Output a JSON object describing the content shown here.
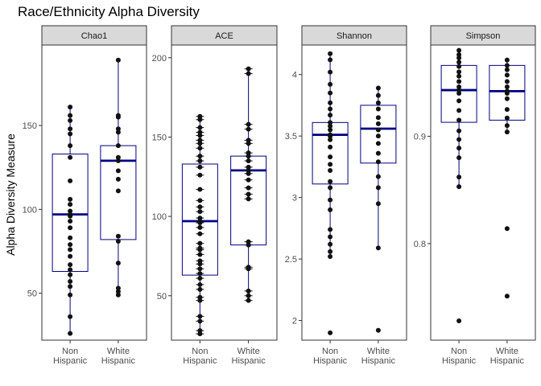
{
  "chart_data": {
    "type": "box",
    "title": "Race/Ethnicity Alpha Diversity",
    "ylabel": "Alpha Diversity Measure",
    "xlabel": "",
    "categories": [
      "Non\nHispanic",
      "White\nHispanic"
    ],
    "colors": {
      "box": "#000080",
      "median": "#000080",
      "points": "#111111",
      "strip_fill": "#d9d9d9",
      "panel_border": "#333333"
    },
    "facets": [
      {
        "name": "Chao1",
        "ylim": [
          22,
          198
        ],
        "yticks": [
          50,
          100,
          150
        ],
        "error_bars": false,
        "groups": [
          {
            "category": "Non\nHispanic",
            "box": {
              "q1": 63,
              "median": 97,
              "q3": 133,
              "whisker_low": 26,
              "whisker_high": 161
            },
            "points": [
              26,
              36,
              49,
              54,
              57,
              61,
              64,
              67,
              72,
              76,
              79,
              83,
              89,
              93,
              96,
              97,
              99,
              103,
              106,
              117,
              131,
              138,
              145,
              148,
              153,
              156,
              161
            ]
          },
          {
            "category": "White\nHispanic",
            "box": {
              "q1": 82,
              "median": 129,
              "q3": 138,
              "whisker_low": 49,
              "whisker_high": 189
            },
            "points": [
              49,
              51,
              53,
              68,
              81,
              84,
              111,
              118,
              123,
              129,
              131,
              138,
              146,
              148,
              155,
              156,
              189
            ]
          }
        ]
      },
      {
        "name": "ACE",
        "ylim": [
          22,
          208
        ],
        "yticks": [
          50,
          100,
          150,
          200
        ],
        "error_bars": true,
        "groups": [
          {
            "category": "Non\nHispanic",
            "box": {
              "q1": 63,
              "median": 97,
              "q3": 133,
              "whisker_low": 26,
              "whisker_high": 161
            },
            "points": [
              26,
              28,
              34,
              37,
              47,
              49,
              54,
              57,
              61,
              64,
              67,
              70,
              72,
              76,
              79,
              80,
              83,
              89,
              93,
              96,
              97,
              99,
              103,
              106,
              110,
              117,
              126,
              131,
              135,
              138,
              143,
              146,
              148,
              151,
              153,
              156,
              161,
              163
            ]
          },
          {
            "category": "White\nHispanic",
            "box": {
              "q1": 82,
              "median": 129,
              "q3": 138,
              "whisker_low": 49,
              "whisker_high": 190
            },
            "points": [
              47,
              50,
              53,
              67,
              68,
              82,
              84,
              111,
              114,
              118,
              123,
              127,
              129,
              131,
              135,
              138,
              140,
              146,
              148,
              155,
              158,
              190,
              193
            ]
          }
        ]
      },
      {
        "name": "Shannon",
        "ylim": [
          1.84,
          4.24
        ],
        "yticks": [
          2.0,
          2.5,
          3.0,
          3.5,
          4.0
        ],
        "error_bars": false,
        "groups": [
          {
            "category": "Non\nHispanic",
            "box": {
              "q1": 3.11,
              "median": 3.51,
              "q3": 3.61,
              "whisker_low": 2.52,
              "whisker_high": 4.17
            },
            "points": [
              1.9,
              2.52,
              2.56,
              2.62,
              2.68,
              2.74,
              2.9,
              2.98,
              3.08,
              3.13,
              3.22,
              3.27,
              3.33,
              3.41,
              3.47,
              3.5,
              3.51,
              3.55,
              3.58,
              3.61,
              3.67,
              3.72,
              3.77,
              3.85,
              3.92,
              4.02,
              4.12,
              4.17
            ]
          },
          {
            "category": "White\nHispanic",
            "box": {
              "q1": 3.28,
              "median": 3.56,
              "q3": 3.75,
              "whisker_low": 2.59,
              "whisker_high": 3.89
            },
            "points": [
              1.92,
              2.59,
              2.95,
              3.08,
              3.17,
              3.29,
              3.36,
              3.44,
              3.5,
              3.55,
              3.6,
              3.65,
              3.72,
              3.77,
              3.83,
              3.89
            ]
          }
        ]
      },
      {
        "name": "Simpson",
        "ylim": [
          0.71,
          0.985
        ],
        "yticks": [
          0.8,
          0.9
        ],
        "error_bars": false,
        "groups": [
          {
            "category": "Non\nHispanic",
            "box": {
              "q1": 0.913,
              "median": 0.943,
              "q3": 0.966,
              "whisker_low": 0.853,
              "whisker_high": 0.98
            },
            "points": [
              0.728,
              0.853,
              0.862,
              0.88,
              0.889,
              0.897,
              0.905,
              0.915,
              0.924,
              0.933,
              0.94,
              0.943,
              0.946,
              0.951,
              0.956,
              0.96,
              0.965,
              0.969,
              0.973,
              0.976,
              0.98
            ]
          },
          {
            "category": "White\nHispanic",
            "box": {
              "q1": 0.915,
              "median": 0.942,
              "q3": 0.966,
              "whisker_low": 0.904,
              "whisker_high": 0.971
            },
            "points": [
              0.751,
              0.814,
              0.904,
              0.91,
              0.917,
              0.925,
              0.935,
              0.94,
              0.942,
              0.946,
              0.951,
              0.957,
              0.962,
              0.966,
              0.971
            ]
          }
        ]
      }
    ]
  }
}
